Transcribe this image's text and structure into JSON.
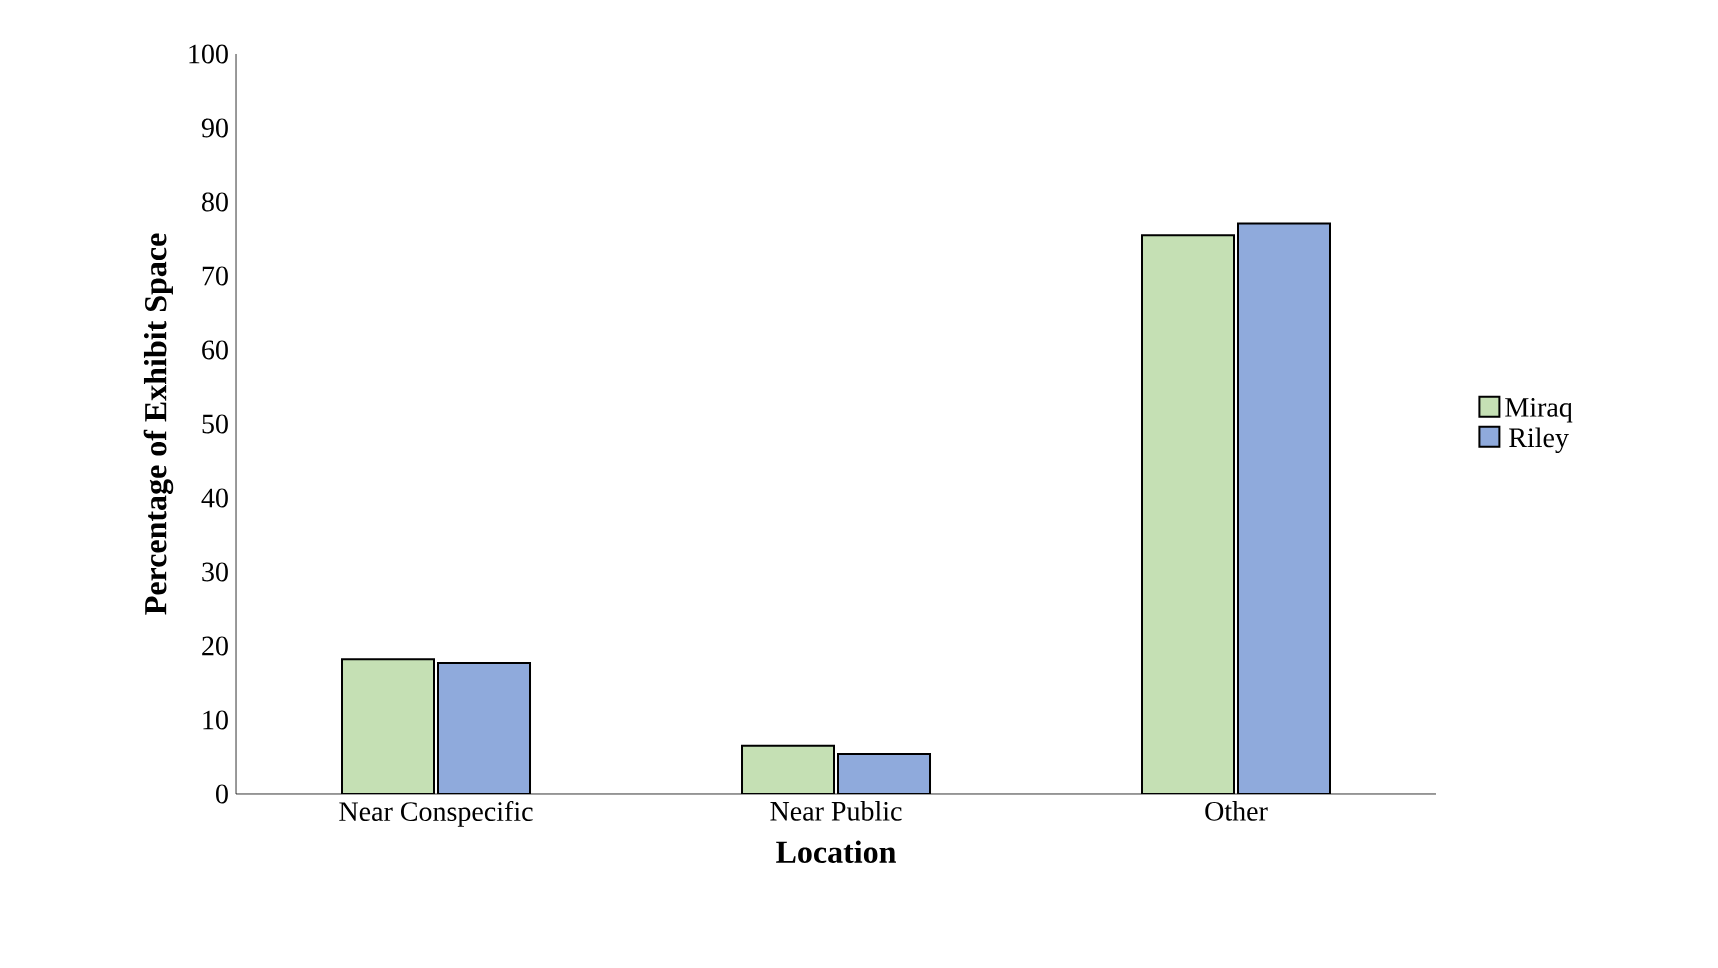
{
  "chart_data": {
    "type": "bar",
    "xlabel": "Location",
    "ylabel": "Percentage of Exhibit Space",
    "categories": [
      "Near Conspecific",
      "Near Public",
      "Other"
    ],
    "series": [
      {
        "name": "Miraq",
        "color": "#c5e0b4",
        "values": [
          18.2,
          6.5,
          75.5
        ]
      },
      {
        "name": "Riley",
        "color": "#8faadc",
        "values": [
          17.7,
          5.4,
          77.1
        ]
      }
    ],
    "ylim": [
      0,
      100
    ],
    "yticks": [
      0,
      10,
      20,
      30,
      40,
      50,
      60,
      70,
      80,
      90,
      100
    ],
    "grid": false,
    "legend": "right"
  }
}
